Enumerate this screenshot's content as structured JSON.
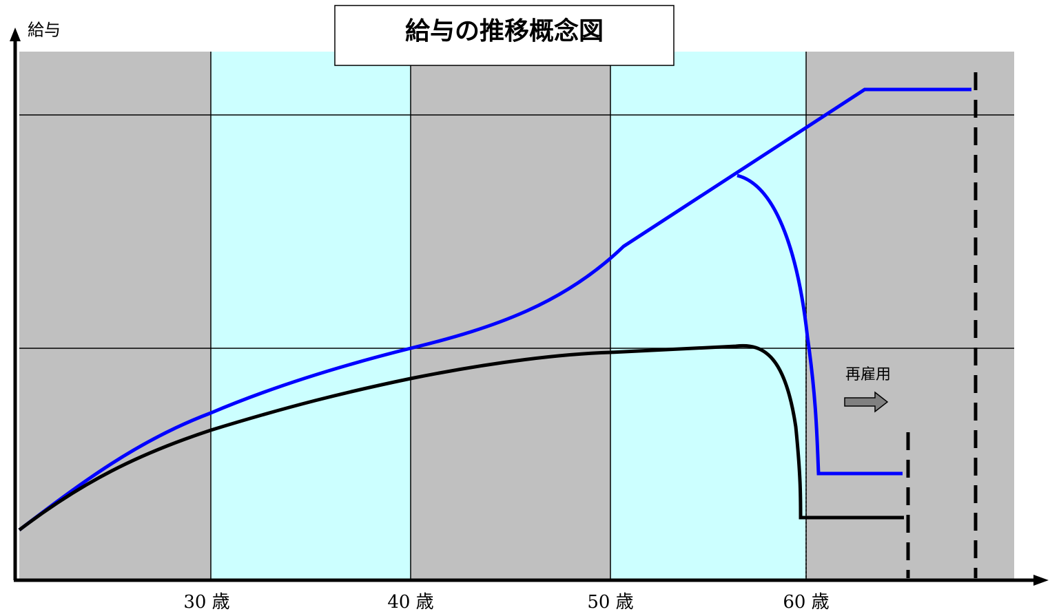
{
  "title": "給与の推移概念図",
  "y_axis_label": "給与",
  "x_axis_labels": [
    "30 歳",
    "40 歳",
    "50 歳",
    "60 歳"
  ],
  "annotation": "再雇用"
}
